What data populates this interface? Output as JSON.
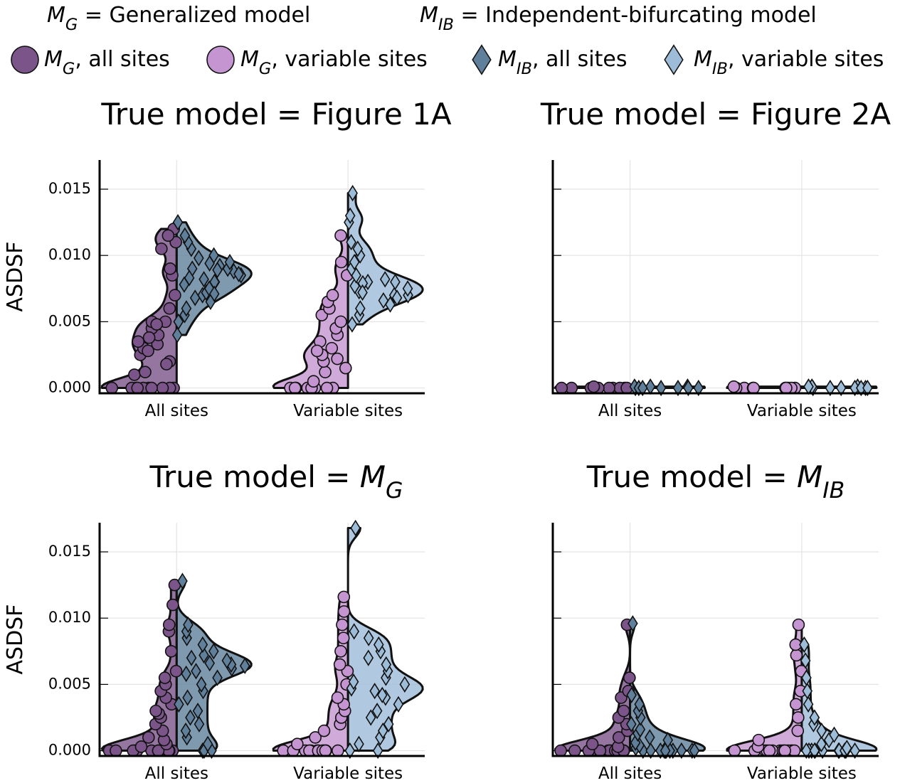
{
  "legend": {
    "notes": [
      "M_G = Generalized model",
      "M_IB = Independent-bifurcating model"
    ],
    "entries": [
      {
        "name": "M_G, all sites",
        "color": "#7b5489",
        "marker": "circle"
      },
      {
        "name": "M_G, variable sites",
        "color": "#c495d0",
        "marker": "circle"
      },
      {
        "name": "M_IB, all sites",
        "color": "#5f7f9a",
        "marker": "diamond"
      },
      {
        "name": "M_IB, variable sites",
        "color": "#9dbcd8",
        "marker": "diamond"
      }
    ]
  },
  "chart_data": [
    {
      "type": "violin",
      "title": "True model = Figure 1A",
      "ylabel": "ASDSF",
      "categories": [
        "All sites",
        "Variable sites"
      ],
      "ylim": [
        -0.0004,
        0.0172
      ],
      "ytick_labels": true,
      "grid": true,
      "yticks": [
        {
          "value": 0,
          "label": "0.000"
        },
        {
          "value": 0.005,
          "label": "0.005"
        },
        {
          "value": 0.01,
          "label": "0.010"
        },
        {
          "value": 0.015,
          "label": "0.015"
        }
      ],
      "series": [
        {
          "values": [
            0,
            0,
            0,
            0,
            0,
            0,
            0,
            0,
            0,
            0,
            0.001,
            0.0012,
            0.002,
            0.0025,
            0.003,
            0.0033,
            0.0035,
            0.004,
            0.0045,
            0.005,
            0.005,
            0.0048,
            0.0038,
            0.006,
            0.007,
            0.0085,
            0.009,
            0.011,
            0.012,
            0.0115,
            0.0105,
            0.0028,
            0.0018
          ]
        },
        {
          "values": [
            0,
            0,
            0,
            0,
            0,
            0,
            0,
            0,
            0.0005,
            0.0012,
            0.0015,
            0.002,
            0.0025,
            0.003,
            0.0035,
            0.004,
            0.0045,
            0.005,
            0.0055,
            0.006,
            0.0065,
            0.007,
            0.0085,
            0.0095,
            0.0115,
            0.0022,
            0.0028
          ]
        },
        {
          "values": [
            0.004,
            0.005,
            0.0055,
            0.006,
            0.0065,
            0.007,
            0.0072,
            0.0075,
            0.008,
            0.008,
            0.0082,
            0.0085,
            0.0088,
            0.009,
            0.009,
            0.0092,
            0.0095,
            0.0098,
            0.01,
            0.0105,
            0.011,
            0.0115,
            0.0125,
            0.0078,
            0.0068,
            0.0086,
            0.0089,
            0.0083,
            0.0094,
            0.0071
          ]
        },
        {
          "values": [
            0.0048,
            0.0055,
            0.006,
            0.0063,
            0.0066,
            0.007,
            0.007,
            0.0073,
            0.0075,
            0.0077,
            0.008,
            0.008,
            0.0082,
            0.0085,
            0.009,
            0.0095,
            0.01,
            0.0105,
            0.011,
            0.0125,
            0.013,
            0.0147,
            0.0068,
            0.0079,
            0.0072
          ]
        }
      ]
    },
    {
      "type": "violin",
      "title": "True model = Figure 2A",
      "categories": [
        "All sites",
        "Variable sites"
      ],
      "ylim": [
        -0.0004,
        0.0172
      ],
      "ytick_labels": false,
      "grid": true,
      "yticks": [
        0,
        0.005,
        0.01,
        0.015
      ],
      "series": [
        {
          "values": [
            0,
            0,
            0,
            0,
            0,
            0,
            0,
            0,
            0,
            0.0001
          ]
        },
        {
          "values": [
            0,
            0,
            0,
            0,
            0,
            0,
            0,
            0,
            0,
            0.0001
          ]
        },
        {
          "values": [
            0,
            0.0001,
            0,
            0.0001,
            0,
            0,
            0.0001,
            0,
            0,
            0
          ]
        },
        {
          "values": [
            0,
            0.0001,
            0,
            0,
            0.0001,
            0,
            0,
            0.0001,
            0,
            0
          ]
        }
      ]
    },
    {
      "type": "violin",
      "title": "True model = M_G",
      "ylabel": "ASDSF",
      "categories": [
        "All sites",
        "Variable sites"
      ],
      "ylim": [
        -0.0004,
        0.0172
      ],
      "ytick_labels": true,
      "grid": true,
      "yticks": [
        {
          "value": 0,
          "label": "0.000"
        },
        {
          "value": 0.005,
          "label": "0.005"
        },
        {
          "value": 0.01,
          "label": "0.010"
        },
        {
          "value": 0.015,
          "label": "0.015"
        }
      ],
      "series": [
        {
          "values": [
            0,
            0,
            0,
            0,
            0,
            0,
            0,
            0,
            0,
            0,
            0,
            0,
            0.0003,
            0.0005,
            0.0008,
            0.001,
            0.0015,
            0.002,
            0.0025,
            0.0028,
            0.003,
            0.0035,
            0.004,
            0.0045,
            0.005,
            0.0055,
            0.006,
            0.0075,
            0.009,
            0.0095,
            0.011,
            0.0125
          ]
        },
        {
          "values": [
            0,
            0,
            0,
            0,
            0,
            0,
            0,
            0,
            0,
            0,
            0,
            0,
            0.0005,
            0.001,
            0.0015,
            0.002,
            0.0025,
            0.003,
            0.0035,
            0.004,
            0.005,
            0.006,
            0.0065,
            0.0075,
            0.0085,
            0.0095,
            0.0105,
            0.0116
          ]
        },
        {
          "values": [
            0,
            0,
            0,
            0.0005,
            0.001,
            0.0015,
            0.002,
            0.0025,
            0.003,
            0.0035,
            0.004,
            0.0045,
            0.005,
            0.0055,
            0.006,
            0.0062,
            0.0065,
            0.0068,
            0.007,
            0.0072,
            0.0075,
            0.008,
            0.0085,
            0.009,
            0.0095,
            0.0128,
            0.0064,
            0.0066,
            0.0058
          ]
        },
        {
          "values": [
            0,
            0,
            0.0005,
            0.001,
            0.0015,
            0.002,
            0.0025,
            0.003,
            0.0035,
            0.004,
            0.0042,
            0.0045,
            0.005,
            0.0055,
            0.006,
            0.0065,
            0.007,
            0.0075,
            0.008,
            0.0085,
            0.009,
            0.0168,
            0.0047,
            0.0052
          ]
        }
      ]
    },
    {
      "type": "violin",
      "title": "True model = M_IB",
      "categories": [
        "All sites",
        "Variable sites"
      ],
      "ylim": [
        -0.0004,
        0.0172
      ],
      "ytick_labels": false,
      "grid": true,
      "yticks": [
        0,
        0.005,
        0.01,
        0.015
      ],
      "series": [
        {
          "values": [
            0,
            0,
            0,
            0,
            0,
            0,
            0,
            0,
            0,
            0,
            0,
            0,
            0,
            0,
            0.0003,
            0.0005,
            0.001,
            0.0015,
            0.002,
            0.0025,
            0.003,
            0.004,
            0.0045,
            0.0055,
            0.0095
          ]
        },
        {
          "values": [
            0,
            0,
            0,
            0,
            0,
            0,
            0,
            0,
            0,
            0,
            0,
            0,
            0,
            0,
            0.0003,
            0.0008,
            0.0015,
            0.0025,
            0.0035,
            0.0045,
            0.006,
            0.0072,
            0.008,
            0.0095
          ]
        },
        {
          "values": [
            0,
            0,
            0,
            0,
            0,
            0,
            0,
            0,
            0,
            0,
            0,
            0,
            0.0002,
            0.0004,
            0.0006,
            0.0008,
            0.001,
            0.0013,
            0.0016,
            0.002,
            0.0025,
            0.003,
            0.0035,
            0.0042,
            0.0096
          ]
        },
        {
          "values": [
            0,
            0,
            0,
            0,
            0,
            0,
            0,
            0,
            0,
            0,
            0,
            0,
            0.0002,
            0.0005,
            0.0008,
            0.0012,
            0.0015,
            0.002,
            0.0025,
            0.0035,
            0.0045,
            0.0055,
            0.0068,
            0.008
          ]
        }
      ]
    }
  ]
}
